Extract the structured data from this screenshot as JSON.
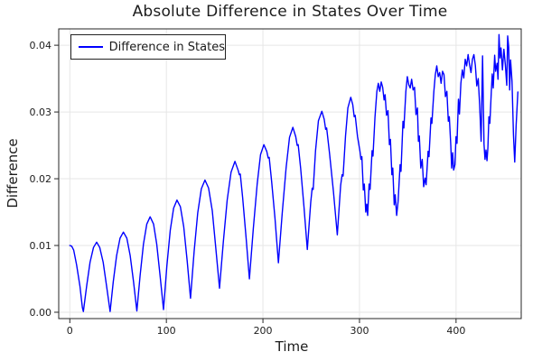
{
  "chart_data": {
    "type": "line",
    "title": "Absolute Difference in States Over Time",
    "xlabel": "Time",
    "ylabel": "Difference",
    "xlim": [
      -11.5,
      467.5
    ],
    "ylim": [
      -0.00095,
      0.04245
    ],
    "grid": true,
    "x_ticks": [
      0,
      100,
      200,
      300,
      400
    ],
    "x_tick_labels": [
      "0",
      "100",
      "200",
      "300",
      "400"
    ],
    "y_ticks": [
      0.0,
      0.01,
      0.02,
      0.03,
      0.04
    ],
    "y_tick_labels": [
      "0.00",
      "0.01",
      "0.02",
      "0.03",
      "0.04"
    ],
    "colors": {
      "series": "#0000ff",
      "grid": "#e6e6e6",
      "frame": "#262626",
      "text": "#1c1c1c",
      "background": "#ffffff"
    },
    "legend": {
      "position": "top-left",
      "entries": [
        {
          "label": "Difference in States",
          "color": "#0000ff"
        }
      ]
    },
    "series": [
      {
        "name": "Difference in States",
        "color": "#0000ff",
        "points": [
          [
            0,
            0.01
          ],
          [
            2,
            0.0099
          ],
          [
            4,
            0.0093
          ],
          [
            7,
            0.0071
          ],
          [
            10.5,
            0.0039
          ],
          [
            13,
            0.0007
          ],
          [
            14,
            0.0001
          ],
          [
            17.5,
            0.004
          ],
          [
            21,
            0.0075
          ],
          [
            24.5,
            0.0097
          ],
          [
            27.8,
            0.0105
          ],
          [
            31,
            0.0097
          ],
          [
            34.5,
            0.0075
          ],
          [
            38,
            0.004
          ],
          [
            41.7,
            0.0001
          ],
          [
            45,
            0.0046
          ],
          [
            48.5,
            0.0085
          ],
          [
            52,
            0.0111
          ],
          [
            55.5,
            0.012
          ],
          [
            59,
            0.0111
          ],
          [
            62.5,
            0.0085
          ],
          [
            66,
            0.0046
          ],
          [
            69.4,
            0.0002
          ],
          [
            72.8,
            0.0055
          ],
          [
            76.3,
            0.0102
          ],
          [
            79.7,
            0.0132
          ],
          [
            83.2,
            0.0143
          ],
          [
            86.7,
            0.0132
          ],
          [
            90,
            0.0102
          ],
          [
            93.5,
            0.0055
          ],
          [
            97,
            0.0004
          ],
          [
            100.5,
            0.0069
          ],
          [
            104,
            0.0123
          ],
          [
            107.5,
            0.0156
          ],
          [
            111,
            0.0168
          ],
          [
            114.5,
            0.0158
          ],
          [
            118,
            0.0128
          ],
          [
            121.5,
            0.0077
          ],
          [
            125,
            0.0021
          ],
          [
            128.7,
            0.0091
          ],
          [
            132.5,
            0.0149
          ],
          [
            136.2,
            0.0185
          ],
          [
            140,
            0.0198
          ],
          [
            143.7,
            0.0186
          ],
          [
            147.5,
            0.0152
          ],
          [
            151.2,
            0.0096
          ],
          [
            155,
            0.0036
          ],
          [
            159,
            0.0105
          ],
          [
            163,
            0.0168
          ],
          [
            167,
            0.021
          ],
          [
            171,
            0.0226
          ],
          [
            174.5,
            0.0212
          ],
          [
            175.5,
            0.0206
          ],
          [
            176.5,
            0.0207
          ],
          [
            179,
            0.0172
          ],
          [
            182.5,
            0.0112
          ],
          [
            186,
            0.005
          ],
          [
            190,
            0.0125
          ],
          [
            194,
            0.0192
          ],
          [
            197.5,
            0.0236
          ],
          [
            201,
            0.0251
          ],
          [
            204,
            0.0241
          ],
          [
            205.5,
            0.0231
          ],
          [
            206.5,
            0.0232
          ],
          [
            209,
            0.0196
          ],
          [
            212.5,
            0.0141
          ],
          [
            216,
            0.0074
          ],
          [
            220,
            0.0148
          ],
          [
            224,
            0.0216
          ],
          [
            227.5,
            0.0262
          ],
          [
            231,
            0.0277
          ],
          [
            234,
            0.0263
          ],
          [
            235.5,
            0.025
          ],
          [
            236.5,
            0.0251
          ],
          [
            239,
            0.0216
          ],
          [
            242.5,
            0.0158
          ],
          [
            246,
            0.0094
          ],
          [
            249.5,
            0.0165
          ],
          [
            251,
            0.0186
          ],
          [
            252,
            0.0184
          ],
          [
            254.5,
            0.0242
          ],
          [
            257.5,
            0.0287
          ],
          [
            261,
            0.0301
          ],
          [
            263.5,
            0.0289
          ],
          [
            265,
            0.0274
          ],
          [
            266,
            0.0276
          ],
          [
            269,
            0.0238
          ],
          [
            273,
            0.0181
          ],
          [
            277,
            0.0116
          ],
          [
            280.5,
            0.019
          ],
          [
            282,
            0.0206
          ],
          [
            283,
            0.0204
          ],
          [
            285.5,
            0.0264
          ],
          [
            288,
            0.0306
          ],
          [
            291,
            0.0322
          ],
          [
            293,
            0.0311
          ],
          [
            294.5,
            0.0293
          ],
          [
            295.5,
            0.0295
          ],
          [
            298,
            0.0263
          ],
          [
            300.5,
            0.0241
          ],
          [
            301.5,
            0.0229
          ],
          [
            302.5,
            0.0233
          ],
          [
            304,
            0.0183
          ],
          [
            305,
            0.0192
          ],
          [
            306.5,
            0.015
          ],
          [
            307.5,
            0.0162
          ],
          [
            308.5,
            0.0145
          ],
          [
            310,
            0.0192
          ],
          [
            311,
            0.0184
          ],
          [
            313,
            0.0242
          ],
          [
            314,
            0.0234
          ],
          [
            316,
            0.0292
          ],
          [
            318,
            0.0331
          ],
          [
            319.5,
            0.0343
          ],
          [
            321,
            0.0331
          ],
          [
            322.5,
            0.0345
          ],
          [
            324,
            0.0337
          ],
          [
            325.5,
            0.0318
          ],
          [
            326.5,
            0.0326
          ],
          [
            328,
            0.0295
          ],
          [
            329.5,
            0.0302
          ],
          [
            331,
            0.0251
          ],
          [
            332,
            0.0259
          ],
          [
            333.5,
            0.0206
          ],
          [
            334.5,
            0.0216
          ],
          [
            336,
            0.0161
          ],
          [
            337,
            0.0176
          ],
          [
            338.5,
            0.0145
          ],
          [
            340,
            0.0166
          ],
          [
            342,
            0.0221
          ],
          [
            343,
            0.0211
          ],
          [
            345,
            0.0286
          ],
          [
            346,
            0.0276
          ],
          [
            348,
            0.0331
          ],
          [
            349.5,
            0.0353
          ],
          [
            351,
            0.0341
          ],
          [
            352.5,
            0.0336
          ],
          [
            354,
            0.0349
          ],
          [
            355.5,
            0.0333
          ],
          [
            357,
            0.0337
          ],
          [
            358.5,
            0.0296
          ],
          [
            360,
            0.0306
          ],
          [
            361,
            0.0256
          ],
          [
            362,
            0.0264
          ],
          [
            363.5,
            0.0216
          ],
          [
            365,
            0.0229
          ],
          [
            366.5,
            0.0188
          ],
          [
            368,
            0.0201
          ],
          [
            369,
            0.0191
          ],
          [
            371,
            0.0241
          ],
          [
            372,
            0.0233
          ],
          [
            374,
            0.0291
          ],
          [
            375,
            0.0283
          ],
          [
            377,
            0.0331
          ],
          [
            378.5,
            0.0356
          ],
          [
            380,
            0.0369
          ],
          [
            381.5,
            0.0353
          ],
          [
            383,
            0.0359
          ],
          [
            384.5,
            0.0343
          ],
          [
            386,
            0.0361
          ],
          [
            387.5,
            0.0356
          ],
          [
            389,
            0.0323
          ],
          [
            390.5,
            0.0331
          ],
          [
            392,
            0.0286
          ],
          [
            393,
            0.0293
          ],
          [
            394.5,
            0.0251
          ],
          [
            395.5,
            0.0216
          ],
          [
            396.5,
            0.0239
          ],
          [
            397.5,
            0.0213
          ],
          [
            398.8,
            0.0221
          ],
          [
            400,
            0.0263
          ],
          [
            401,
            0.0253
          ],
          [
            402.5,
            0.0319
          ],
          [
            403.5,
            0.0297
          ],
          [
            405,
            0.0343
          ],
          [
            406.5,
            0.0363
          ],
          [
            408,
            0.0351
          ],
          [
            409.5,
            0.0379
          ],
          [
            411,
            0.0369
          ],
          [
            412.5,
            0.0386
          ],
          [
            414,
            0.0371
          ],
          [
            415.5,
            0.0359
          ],
          [
            417,
            0.0379
          ],
          [
            418.5,
            0.0386
          ],
          [
            420,
            0.037
          ],
          [
            421.5,
            0.0339
          ],
          [
            423,
            0.035
          ],
          [
            424.5,
            0.031
          ],
          [
            426,
            0.0256
          ],
          [
            427.5,
            0.0384
          ],
          [
            429,
            0.0252
          ],
          [
            430,
            0.0229
          ],
          [
            431,
            0.0243
          ],
          [
            432,
            0.0227
          ],
          [
            433,
            0.0246
          ],
          [
            434,
            0.0293
          ],
          [
            435,
            0.0283
          ],
          [
            436.5,
            0.0331
          ],
          [
            437.5,
            0.0357
          ],
          [
            438.5,
            0.0336
          ],
          [
            440,
            0.0385
          ],
          [
            441,
            0.0361
          ],
          [
            442.5,
            0.0373
          ],
          [
            443.5,
            0.0349
          ],
          [
            444.5,
            0.0416
          ],
          [
            445.5,
            0.0381
          ],
          [
            446.5,
            0.0396
          ],
          [
            448,
            0.0363
          ],
          [
            449.5,
            0.0394
          ],
          [
            451,
            0.0371
          ],
          [
            452.5,
            0.034
          ],
          [
            453.5,
            0.0414
          ],
          [
            454.5,
            0.0397
          ],
          [
            455.5,
            0.0333
          ],
          [
            456.5,
            0.0378
          ],
          [
            458,
            0.0346
          ],
          [
            459.5,
            0.0266
          ],
          [
            460.8,
            0.0225
          ],
          [
            462.3,
            0.0281
          ],
          [
            464,
            0.033
          ]
        ]
      }
    ]
  }
}
